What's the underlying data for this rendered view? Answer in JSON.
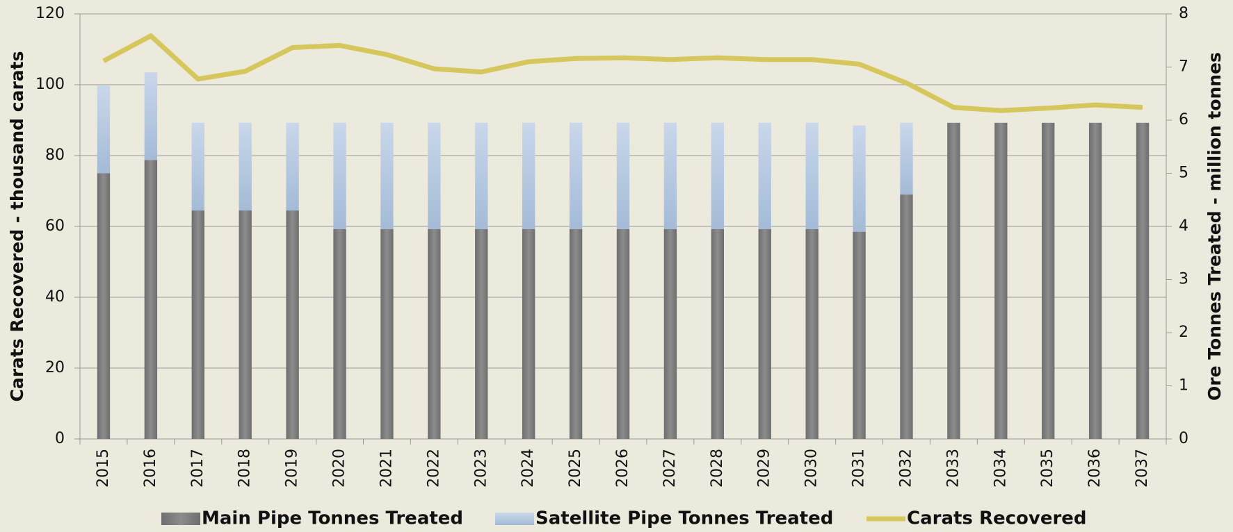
{
  "chart_data": {
    "type": "bar-line",
    "y_label": "Carats Recovered - thousand carats",
    "y2_label": "Ore Tonnes Treated - million tonnes",
    "categories": [
      "2015",
      "2016",
      "2017",
      "2018",
      "2019",
      "2020",
      "2021",
      "2022",
      "2023",
      "2024",
      "2025",
      "2026",
      "2027",
      "2028",
      "2029",
      "2030",
      "2031",
      "2032",
      "2033",
      "2034",
      "2035",
      "2036",
      "2037"
    ],
    "series": [
      {
        "name": "Main Pipe Tonnes Treated",
        "color": "#7f7f7f",
        "kind": "bar",
        "axis": "y2",
        "values": [
          5.0,
          5.25,
          4.3,
          4.3,
          4.3,
          3.95,
          3.95,
          3.95,
          3.95,
          3.95,
          3.95,
          3.95,
          3.95,
          3.95,
          3.95,
          3.95,
          3.9,
          4.6,
          5.95,
          5.95,
          5.95,
          5.95,
          5.95
        ]
      },
      {
        "name": "Satellite Pipe Tonnes Treated",
        "color": "#b9cde4",
        "kind": "bar",
        "axis": "y2",
        "values": [
          1.65,
          1.65,
          1.65,
          1.65,
          1.65,
          2.0,
          2.0,
          2.0,
          2.0,
          2.0,
          2.0,
          2.0,
          2.0,
          2.0,
          2.0,
          2.0,
          2.0,
          1.35,
          0,
          0,
          0,
          0,
          0
        ]
      },
      {
        "name": "Carats Recovered",
        "color": "#d6c75c",
        "kind": "line",
        "axis": "y",
        "values": [
          106.7,
          113.8,
          101.6,
          103.8,
          110.5,
          111.1,
          108.5,
          104.5,
          103.6,
          106.5,
          107.4,
          107.6,
          107.1,
          107.6,
          107.1,
          107.1,
          105.8,
          100.5,
          93.6,
          92.7,
          93.4,
          94.3,
          93.6
        ]
      }
    ],
    "ylim": [
      0,
      120
    ],
    "yticks": [
      0,
      20,
      40,
      60,
      80,
      100,
      120
    ],
    "y2lim": [
      0,
      8
    ],
    "y2ticks": [
      0,
      1,
      2,
      3,
      4,
      5,
      6,
      7,
      8
    ],
    "grid": true,
    "legend": "bottom"
  }
}
